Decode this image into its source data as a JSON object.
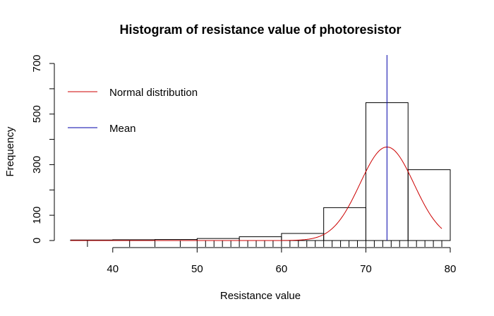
{
  "chart_data": {
    "type": "histogram",
    "title": "Histogram of resistance value of photoresistor",
    "xlabel": "Resistance value",
    "ylabel": "Frequency",
    "xlim": [
      35,
      80
    ],
    "ylim": [
      0,
      700
    ],
    "x_ticks": [
      40,
      50,
      60,
      70,
      80
    ],
    "y_ticks": [
      0,
      100,
      300,
      500,
      700
    ],
    "bins": [
      {
        "from": 35,
        "to": 40,
        "count": 2
      },
      {
        "from": 40,
        "to": 45,
        "count": 3
      },
      {
        "from": 45,
        "to": 50,
        "count": 4
      },
      {
        "from": 50,
        "to": 55,
        "count": 8
      },
      {
        "from": 55,
        "to": 60,
        "count": 15
      },
      {
        "from": 60,
        "to": 65,
        "count": 28
      },
      {
        "from": 65,
        "to": 70,
        "count": 130
      },
      {
        "from": 70,
        "to": 75,
        "count": 545
      },
      {
        "from": 75,
        "to": 80,
        "count": 280
      }
    ],
    "rug_values": [
      37,
      42,
      45,
      48,
      50,
      51,
      52,
      53,
      54,
      55,
      56,
      57,
      58,
      59,
      60,
      61,
      62,
      63,
      64,
      65,
      66,
      67,
      68,
      69,
      70,
      71,
      72,
      73,
      74,
      75,
      76,
      77,
      78,
      79
    ],
    "mean": 72.5,
    "normal_curve": {
      "mean": 72.5,
      "sd": 3.2,
      "peak": 370,
      "x_from": 35,
      "x_to": 79
    },
    "legend": {
      "position": "top-left",
      "items": [
        {
          "label": "Normal distribution",
          "color": "#cc0000"
        },
        {
          "label": "Mean",
          "color": "#0000aa"
        }
      ]
    },
    "colors": {
      "bars": "#000000",
      "normal": "#cc0000",
      "mean": "#0000aa"
    }
  }
}
